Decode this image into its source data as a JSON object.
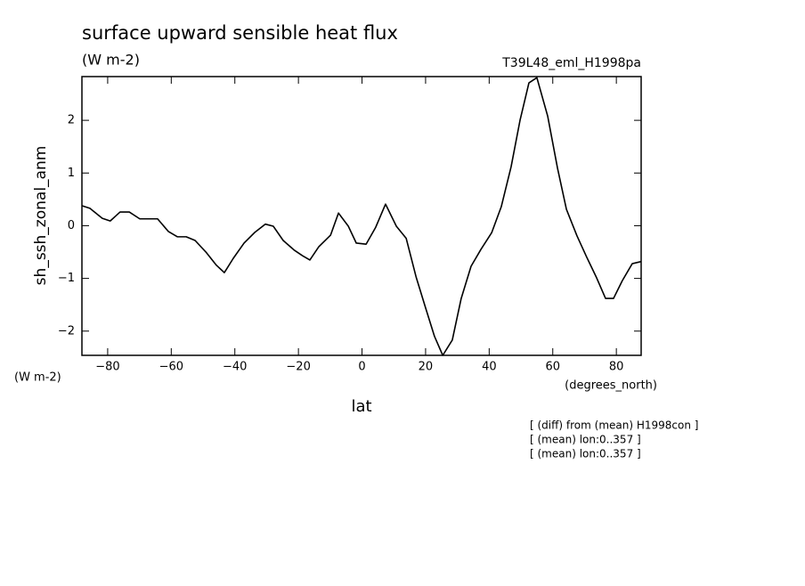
{
  "chart_data": {
    "type": "line",
    "title": "surface upward sensible heat flux",
    "subtitle": "(W m-2)",
    "run_label": "T39L48_eml_H1998pa",
    "y_axis_label": "sh_ssh_zonal_anm",
    "y_units": "(W m-2)",
    "x_units": "(degrees_north)",
    "x_axis_label": "lat",
    "annotations": [
      "[ (diff) from (mean) H1998con ]",
      "[ (mean) lon:0..357 ]",
      "[ (mean) lon:0..357 ]"
    ],
    "color": "#000000",
    "x": [
      -88.1,
      -85.6,
      -81.7,
      -79.2,
      -76.1,
      -73.2,
      -69.9,
      -64.3,
      -60.9,
      -58.1,
      -55.3,
      -52.5,
      -49.1,
      -45.8,
      -43.3,
      -40.5,
      -37.1,
      -33.8,
      -30.4,
      -27.9,
      -24.8,
      -21.4,
      -18.7,
      -16.4,
      -13.6,
      -9.9,
      -7.4,
      -4.3,
      -1.8,
      1.3,
      4.3,
      7.4,
      10.8,
      13.9,
      17.0,
      20.0,
      22.8,
      25.4,
      28.4,
      31.2,
      34.3,
      37.4,
      40.8,
      43.8,
      46.9,
      49.7,
      52.5,
      55.0,
      58.4,
      61.5,
      64.3,
      67.6,
      70.7,
      73.8,
      76.6,
      79.1,
      81.9,
      85.0,
      87.8
    ],
    "values": [
      0.38,
      0.33,
      0.14,
      0.09,
      0.26,
      0.26,
      0.13,
      0.13,
      -0.11,
      -0.21,
      -0.21,
      -0.28,
      -0.5,
      -0.75,
      -0.89,
      -0.62,
      -0.33,
      -0.13,
      0.03,
      -0.01,
      -0.28,
      -0.46,
      -0.57,
      -0.65,
      -0.4,
      -0.18,
      0.24,
      -0.01,
      -0.33,
      -0.35,
      -0.03,
      0.41,
      -0.01,
      -0.24,
      -0.97,
      -1.56,
      -2.1,
      -2.46,
      -2.17,
      -1.38,
      -0.77,
      -0.45,
      -0.13,
      0.36,
      1.12,
      2.0,
      2.71,
      2.81,
      2.08,
      1.09,
      0.31,
      -0.19,
      -0.6,
      -0.99,
      -1.38,
      -1.38,
      -1.04,
      -0.72,
      -0.68
    ],
    "xlim": [
      -88.1,
      87.8
    ],
    "ylim": [
      -2.46,
      2.83
    ],
    "xticks": [
      {
        "value": -80,
        "label": "−80"
      },
      {
        "value": -60,
        "label": "−60"
      },
      {
        "value": -40,
        "label": "−40"
      },
      {
        "value": -20,
        "label": "−20"
      },
      0,
      20,
      40,
      60,
      80
    ],
    "yticks": [
      {
        "value": -2,
        "label": "−2"
      },
      {
        "value": -1,
        "label": "−1"
      },
      0,
      1,
      2
    ]
  }
}
